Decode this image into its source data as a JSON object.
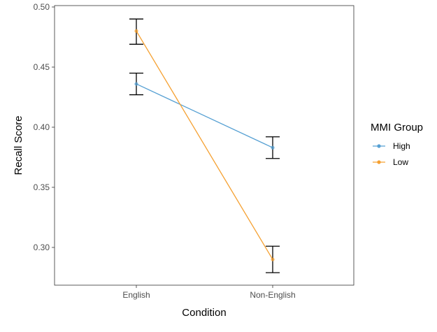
{
  "chart_data": {
    "type": "line",
    "xlabel": "Condition",
    "ylabel": "Recall Score",
    "categories": [
      "English",
      "Non-English"
    ],
    "ylim": [
      0.27,
      0.5
    ],
    "yticks": [
      0.3,
      0.35,
      0.4,
      0.45,
      0.5
    ],
    "ytick_labels": [
      "0.30",
      "0.35",
      "0.40",
      "0.45",
      "0.50"
    ],
    "grid": false,
    "legend": {
      "title": "MMI Group",
      "position": "right"
    },
    "series": [
      {
        "name": "High",
        "color": "#56a0d3",
        "values": [
          0.436,
          0.383
        ],
        "error_low": [
          0.427,
          0.374
        ],
        "error_high": [
          0.445,
          0.392
        ]
      },
      {
        "name": "Low",
        "color": "#f5a030",
        "values": [
          0.48,
          0.29
        ],
        "error_low": [
          0.469,
          0.279
        ],
        "error_high": [
          0.49,
          0.301
        ]
      }
    ]
  }
}
